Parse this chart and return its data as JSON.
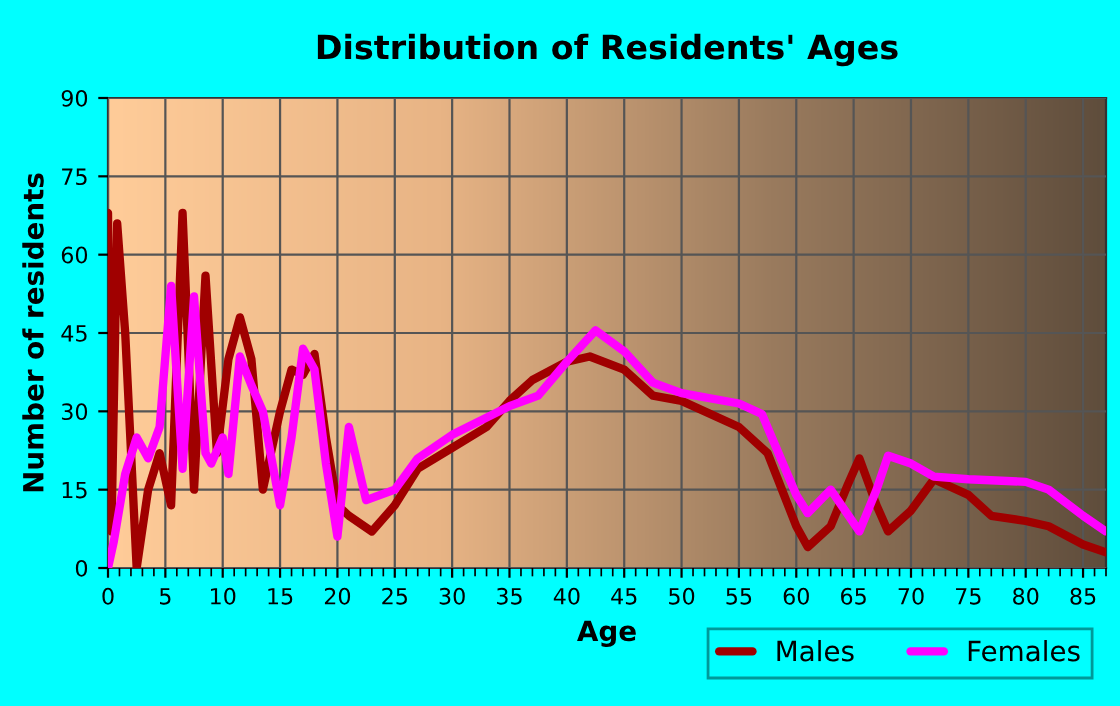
{
  "chart_data": {
    "type": "line",
    "title": "Distribution of Residents' Ages",
    "xlabel": "Age",
    "ylabel": "Number of residents",
    "xlim": [
      0,
      87
    ],
    "ylim": [
      0,
      90
    ],
    "xticks": [
      0,
      5,
      10,
      15,
      20,
      25,
      30,
      35,
      40,
      45,
      50,
      55,
      60,
      65,
      70,
      75,
      80,
      85
    ],
    "yticks": [
      0,
      15,
      30,
      45,
      60,
      75,
      90
    ],
    "grid": true,
    "legend": "bottom right",
    "line_style": "solid",
    "marker": "none",
    "series": [
      {
        "name": "Males",
        "color": "#a00000",
        "x": [
          0,
          0.3,
          0.8,
          1.5,
          2.5,
          3.5,
          4.5,
          5.5,
          6.5,
          7.5,
          8.5,
          9.5,
          10.5,
          11.5,
          12.5,
          13.5,
          15,
          16,
          17,
          18,
          19,
          20,
          21,
          23,
          25,
          27,
          30,
          33,
          35,
          37,
          40,
          42,
          45,
          47.5,
          50,
          55,
          57.5,
          60,
          61,
          63,
          64.5,
          65.5,
          67,
          68,
          70,
          72,
          75,
          77,
          80,
          82,
          85,
          87
        ],
        "values": [
          68,
          7,
          66,
          45,
          0,
          15,
          22,
          12,
          68,
          15,
          56,
          22,
          40,
          48,
          40,
          15,
          30,
          38,
          37,
          41,
          25,
          12,
          10,
          7,
          12,
          19,
          23,
          27,
          32,
          36,
          39.5,
          40.5,
          38,
          33,
          32,
          27,
          22,
          8,
          4,
          8,
          16,
          21,
          12,
          7,
          11,
          17,
          14,
          10,
          9,
          8,
          4.5,
          3
        ]
      },
      {
        "name": "Females",
        "color": "#ff00ff",
        "x": [
          0,
          0.5,
          1.5,
          2.5,
          3.5,
          4.5,
          5.5,
          6.5,
          7.5,
          8.5,
          9,
          10,
          10.5,
          11.5,
          12.5,
          13.5,
          15,
          16,
          17,
          18,
          19,
          20,
          21,
          22.5,
          25,
          27,
          30,
          35,
          37.5,
          40,
          42.5,
          45,
          47.5,
          50,
          55,
          57,
          60,
          61,
          63,
          65.5,
          67,
          68,
          70,
          72,
          75,
          80,
          82,
          85,
          87
        ],
        "values": [
          0,
          5,
          18,
          25,
          21,
          27,
          54,
          19,
          52,
          22,
          20,
          25,
          18,
          40.5,
          35,
          30,
          12,
          25,
          42,
          38,
          20,
          6,
          27,
          13,
          15,
          21,
          25.5,
          31,
          33,
          39.5,
          45.5,
          41.5,
          35.5,
          33.5,
          31.5,
          29.5,
          14,
          10.5,
          15,
          7,
          15,
          21.5,
          20,
          17.5,
          17,
          16.5,
          15,
          10,
          7
        ]
      }
    ]
  }
}
